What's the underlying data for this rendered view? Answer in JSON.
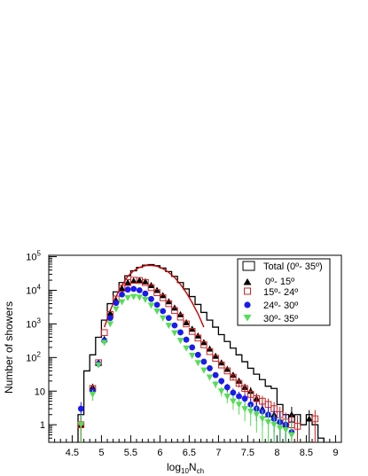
{
  "chart_data": {
    "type": "histogram",
    "xlabel": "log",
    "xlabel_sub": "10",
    "xlabel_var": "N",
    "xlabel_var_sub": "ch",
    "ylabel": "Number of showers",
    "xlim": [
      4.1,
      9.1
    ],
    "ylim": [
      0.3,
      110000
    ],
    "yscale": "log",
    "x_ticks": [
      "4.5",
      "5",
      "5.5",
      "6",
      "6.5",
      "7",
      "7.5",
      "8",
      "8.5",
      "9"
    ],
    "x_tick_values": [
      4.5,
      5,
      5.5,
      6,
      6.5,
      7,
      7.5,
      8,
      8.5,
      9
    ],
    "y_ticks": [
      {
        "value": 1,
        "base": "1",
        "exp": ""
      },
      {
        "value": 10,
        "base": "10",
        "exp": ""
      },
      {
        "value": 100,
        "base": "10",
        "exp": "2"
      },
      {
        "value": 1000,
        "base": "10",
        "exp": "3"
      },
      {
        "value": 10000,
        "base": "10",
        "exp": "4"
      },
      {
        "value": 100000,
        "base": "10",
        "exp": "5"
      }
    ],
    "legend_position": "top-right",
    "colors": {
      "total": "#000000",
      "s1": "#000000",
      "s2": "#cc2222",
      "s3": "#1a1aee",
      "s4": "#55dd55",
      "fit": "#cc0000"
    },
    "bin_edges": [
      4.6,
      4.7,
      4.8,
      4.9,
      5.0,
      5.1,
      5.2,
      5.3,
      5.4,
      5.5,
      5.6,
      5.7,
      5.8,
      5.9,
      6.0,
      6.1,
      6.2,
      6.3,
      6.4,
      6.5,
      6.6,
      6.7,
      6.8,
      6.9,
      7.0,
      7.1,
      7.2,
      7.3,
      7.4,
      7.5,
      7.6,
      7.7,
      7.8,
      7.9,
      8.0,
      8.1,
      8.2,
      8.3,
      8.4,
      8.5,
      8.6,
      8.7,
      8.8
    ],
    "total": {
      "name": "Total (0º- 35º)",
      "values": [
        2,
        40,
        120,
        400,
        1300,
        4000,
        9000,
        17000,
        27000,
        38000,
        48000,
        56000,
        58000,
        54000,
        46000,
        36000,
        26000,
        17000,
        11000,
        6500,
        3800,
        2200,
        1300,
        800,
        480,
        300,
        190,
        120,
        75,
        48,
        32,
        22,
        14,
        12,
        4,
        2,
        1.2,
        2,
        1,
        2,
        1,
        0.4
      ]
    },
    "series": [
      {
        "name": "0º- 15º",
        "marker": "triangle-up",
        "x": [
          4.65,
          4.85,
          4.95,
          5.05,
          5.15,
          5.25,
          5.35,
          5.45,
          5.55,
          5.65,
          5.75,
          5.85,
          5.95,
          6.05,
          6.15,
          6.25,
          6.35,
          6.45,
          6.55,
          6.65,
          6.75,
          6.85,
          6.95,
          7.05,
          7.15,
          7.25,
          7.35,
          7.45,
          7.55,
          7.65,
          7.75,
          7.85,
          7.95,
          8.05,
          8.15,
          8.25,
          8.55
        ],
        "values": [
          1,
          13,
          70,
          350,
          2100,
          5000,
          11500,
          17000,
          19000,
          20000,
          18000,
          14000,
          10000,
          7000,
          4600,
          3000,
          1900,
          1100,
          700,
          440,
          280,
          180,
          110,
          70,
          45,
          30,
          20,
          13,
          10,
          6,
          3,
          2,
          2,
          1.3,
          1,
          2,
          1.5
        ]
      },
      {
        "name": "15º- 24º",
        "marker": "open-square",
        "x": [
          4.65,
          4.85,
          4.95,
          5.05,
          5.15,
          5.25,
          5.35,
          5.45,
          5.55,
          5.65,
          5.75,
          5.85,
          5.95,
          6.05,
          6.15,
          6.25,
          6.35,
          6.45,
          6.55,
          6.65,
          6.75,
          6.85,
          6.95,
          7.05,
          7.15,
          7.25,
          7.35,
          7.45,
          7.55,
          7.65,
          7.75,
          7.85,
          7.95,
          8.05,
          8.15,
          8.25,
          8.35,
          8.65
        ],
        "values": [
          1,
          12,
          70,
          550,
          1900,
          5500,
          11500,
          17000,
          20000,
          19500,
          17000,
          12000,
          8500,
          6000,
          4000,
          2500,
          1600,
          1000,
          600,
          380,
          240,
          150,
          95,
          60,
          40,
          26,
          17,
          12,
          8,
          6,
          5,
          4,
          3,
          2,
          1.2,
          1,
          0.9,
          1.5
        ]
      },
      {
        "name": "24º- 30º",
        "marker": "circle",
        "x": [
          4.65,
          4.85,
          4.95,
          5.05,
          5.15,
          5.25,
          5.35,
          5.45,
          5.55,
          5.65,
          5.75,
          5.85,
          5.95,
          6.05,
          6.15,
          6.25,
          6.35,
          6.45,
          6.55,
          6.65,
          6.75,
          6.85,
          6.95,
          7.05,
          7.15,
          7.25,
          7.35,
          7.45,
          7.55,
          7.65,
          7.75,
          7.85,
          7.95,
          8.05,
          8.15,
          8.25
        ],
        "values": [
          3,
          10,
          65,
          320,
          1500,
          4200,
          7500,
          10500,
          11000,
          10000,
          8000,
          5500,
          3700,
          2400,
          1500,
          900,
          560,
          340,
          200,
          120,
          75,
          48,
          30,
          20,
          13,
          9,
          7,
          6,
          4,
          3,
          2.5,
          2,
          1.5,
          1.2,
          1,
          0.6
        ]
      },
      {
        "name": "30º- 35º",
        "marker": "triangle-down",
        "x": [
          4.65,
          4.85,
          4.95,
          5.05,
          5.15,
          5.25,
          5.35,
          5.45,
          5.55,
          5.65,
          5.75,
          5.85,
          5.95,
          6.05,
          6.15,
          6.25,
          6.35,
          6.45,
          6.55,
          6.65,
          6.75,
          6.85,
          6.95,
          7.05,
          7.15,
          7.25,
          7.35,
          7.45,
          7.55,
          7.65,
          7.75,
          7.85,
          7.95,
          8.05,
          8.15,
          8.25
        ],
        "values": [
          1,
          8,
          60,
          280,
          1000,
          2800,
          4500,
          6000,
          6500,
          6200,
          5300,
          3600,
          2400,
          1500,
          900,
          540,
          320,
          190,
          115,
          70,
          42,
          26,
          16,
          10,
          7,
          5,
          4,
          3,
          2.5,
          2,
          1.5,
          1.2,
          1,
          0.8,
          0.7,
          0.5
        ]
      }
    ],
    "fit": {
      "x": [
        5.05,
        5.15,
        5.25,
        5.35,
        5.45,
        5.55,
        5.65,
        5.75,
        5.85,
        5.95,
        6.05,
        6.15,
        6.25,
        6.35,
        6.45,
        6.55,
        6.65,
        6.75
      ],
      "values": [
        800,
        2500,
        6500,
        14000,
        26000,
        38000,
        48000,
        54000,
        55000,
        52000,
        44000,
        34000,
        24000,
        15000,
        8500,
        4300,
        2000,
        800
      ]
    }
  }
}
